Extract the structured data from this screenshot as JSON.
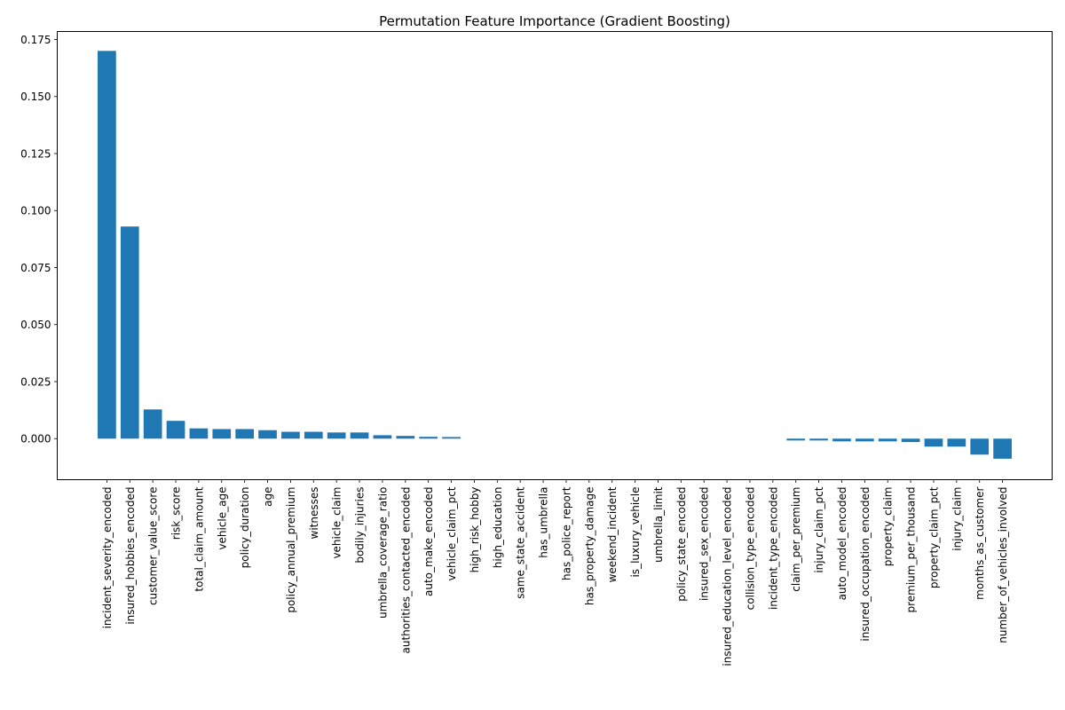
{
  "chart_data": {
    "type": "bar",
    "title": "Permutation Feature Importance (Gradient Boosting)",
    "xlabel": "",
    "ylabel": "",
    "ylim": [
      -0.018,
      0.1785
    ],
    "yticks": [
      0.0,
      0.025,
      0.05,
      0.075,
      0.1,
      0.125,
      0.15,
      0.175
    ],
    "ytick_labels": [
      "0.000",
      "0.025",
      "0.050",
      "0.075",
      "0.100",
      "0.125",
      "0.150",
      "0.175"
    ],
    "grid": false,
    "bar_color": "#1f77b4",
    "categories": [
      "incident_severity_encoded",
      "insured_hobbies_encoded",
      "customer_value_score",
      "risk_score",
      "total_claim_amount",
      "vehicle_age",
      "policy_duration",
      "age",
      "policy_annual_premium",
      "witnesses",
      "vehicle_claim",
      "bodily_injuries",
      "umbrella_coverage_ratio",
      "authorities_contacted_encoded",
      "auto_make_encoded",
      "vehicle_claim_pct",
      "high_risk_hobby",
      "high_education",
      "same_state_accident",
      "has_umbrella",
      "has_police_report",
      "has_property_damage",
      "weekend_incident",
      "is_luxury_vehicle",
      "umbrella_limit",
      "policy_state_encoded",
      "insured_sex_encoded",
      "insured_education_level_encoded",
      "collision_type_encoded",
      "incident_type_encoded",
      "claim_per_premium",
      "injury_claim_pct",
      "auto_model_encoded",
      "insured_occupation_encoded",
      "property_claim",
      "premium_per_thousand",
      "property_claim_pct",
      "injury_claim",
      "months_as_customer",
      "number_of_vehicles_involved"
    ],
    "values": [
      0.17,
      0.093,
      0.0128,
      0.0078,
      0.0045,
      0.0042,
      0.0042,
      0.0037,
      0.003,
      0.003,
      0.0027,
      0.0027,
      0.0015,
      0.0012,
      0.0008,
      0.0007,
      0.0,
      0.0,
      0.0,
      0.0,
      0.0,
      0.0,
      0.0,
      0.0,
      0.0,
      0.0,
      0.0,
      0.0,
      0.0,
      0.0,
      -0.0008,
      -0.0008,
      -0.0012,
      -0.0012,
      -0.0012,
      -0.0015,
      -0.0035,
      -0.0035,
      -0.007,
      -0.0088
    ]
  }
}
